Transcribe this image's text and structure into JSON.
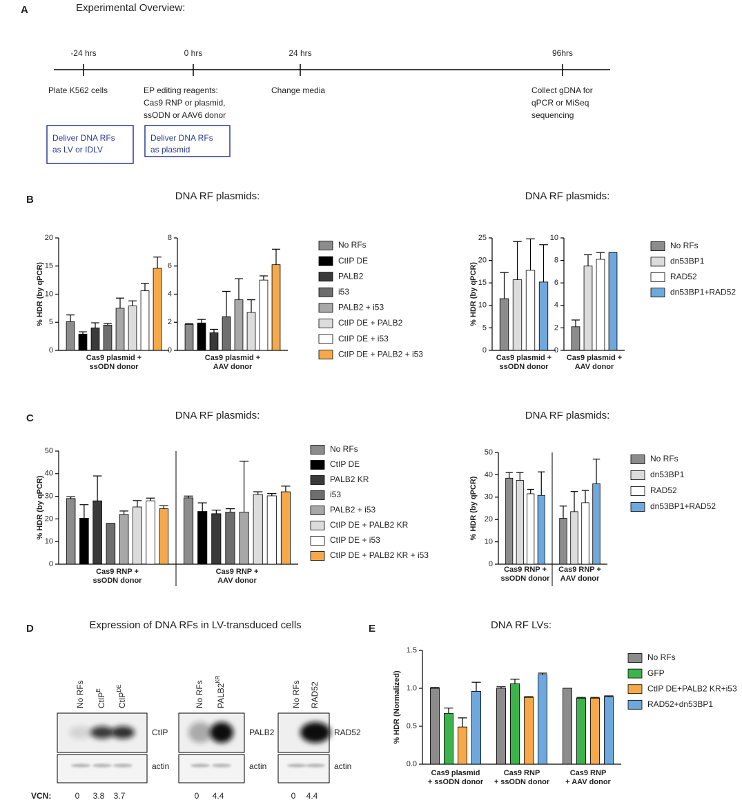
{
  "panel_labels": [
    "A",
    "B",
    "C",
    "D",
    "E"
  ],
  "timeline": {
    "title": "Experimental Overview:",
    "points": [
      {
        "time": "-24 hrs",
        "lines": [
          "Plate K562 cells"
        ]
      },
      {
        "time": "0 hrs",
        "lines": [
          "EP editing reagents:",
          "Cas9 RNP or plasmid,",
          "ssODN or AAV6 donor"
        ]
      },
      {
        "time": "24 hrs",
        "lines": [
          "Change media"
        ]
      },
      {
        "time": "96hrs",
        "lines": [
          "Collect gDNA for",
          "qPCR or MiSeq",
          "sequencing"
        ]
      }
    ],
    "boxes": [
      [
        "Deliver DNA RFs",
        "as LV or IDLV"
      ],
      [
        "Deliver DNA RFs",
        "as plasmid"
      ]
    ]
  },
  "chart_data": [
    {
      "type": "bar",
      "title": "DNA RF plasmids:",
      "ylabel": "% HDR (by qPCR)",
      "categories": [
        [
          "Cas9 plasmid +",
          "ssODN donor"
        ],
        [
          "Cas9 plasmid +",
          "AAV donor"
        ]
      ],
      "axes": [
        {
          "ylim": [
            0,
            20
          ],
          "yticks": [
            0,
            5,
            10,
            15,
            20
          ]
        },
        {
          "ylim": [
            0,
            8
          ],
          "yticks": [
            0,
            2,
            4,
            6,
            8
          ]
        }
      ],
      "series": [
        {
          "name": "No RFs",
          "color": "#8c8c8c",
          "values": [
            5.1,
            1.85
          ],
          "errors": [
            1.2,
            0.05
          ]
        },
        {
          "name": "CtIP DE",
          "color": "#000000",
          "values": [
            2.9,
            1.95
          ],
          "errors": [
            0.4,
            0.25
          ]
        },
        {
          "name": "PALB2",
          "color": "#3a3a3a",
          "values": [
            4.0,
            1.25
          ],
          "errors": [
            0.9,
            0.25
          ]
        },
        {
          "name": "i53",
          "color": "#6e6e6e",
          "values": [
            4.5,
            2.4
          ],
          "errors": [
            0.3,
            1.8
          ]
        },
        {
          "name": "PALB2 + i53",
          "color": "#a8a8a8",
          "values": [
            7.5,
            3.6
          ],
          "errors": [
            1.8,
            1.5
          ]
        },
        {
          "name": "CtIP DE + PALB2",
          "color": "#dcdcdc",
          "values": [
            7.9,
            2.7
          ],
          "errors": [
            0.9,
            0.9
          ]
        },
        {
          "name": "CtIP DE + i53",
          "color": "#ffffff",
          "values": [
            10.6,
            5.0
          ],
          "errors": [
            1.3,
            0.3
          ]
        },
        {
          "name": "CtIP DE + PALB2 + i53",
          "color": "#f5a94a",
          "values": [
            14.6,
            6.1
          ],
          "errors": [
            2.0,
            1.1
          ]
        }
      ]
    },
    {
      "type": "bar",
      "title": "DNA RF plasmids:",
      "ylabel": "% HDR (by qPCR)",
      "categories": [
        [
          "Cas9 plasmid +",
          "ssODN donor"
        ],
        [
          "Cas9 plasmid +",
          "AAV donor"
        ]
      ],
      "axes": [
        {
          "ylim": [
            0,
            25
          ],
          "yticks": [
            0,
            5,
            10,
            15,
            20,
            25
          ]
        },
        {
          "ylim": [
            0,
            10
          ],
          "yticks": [
            0,
            2,
            4,
            6,
            8,
            10
          ]
        }
      ],
      "series": [
        {
          "name": "No RFs",
          "color": "#8c8c8c",
          "values": [
            11.5,
            2.1
          ],
          "errors": [
            5.8,
            0.6
          ]
        },
        {
          "name": "dn53BP1",
          "color": "#dcdcdc",
          "values": [
            15.7,
            7.5
          ],
          "errors": [
            8.5,
            1.0
          ]
        },
        {
          "name": "RAD52",
          "color": "#ffffff",
          "values": [
            17.8,
            8.1
          ],
          "errors": [
            7.0,
            0.6
          ]
        },
        {
          "name": "dn53BP1+RAD52",
          "color": "#6fa8dc",
          "values": [
            15.2,
            8.7
          ],
          "errors": [
            8.3,
            0
          ]
        }
      ]
    },
    {
      "type": "bar",
      "title": "DNA RF plasmids:",
      "ylabel": "% HDR (by qPCR)",
      "categories": [
        [
          "Cas9 RNP +",
          "ssODN donor"
        ],
        [
          "Cas9 RNP +",
          "AAV donor"
        ]
      ],
      "axes": [
        {
          "ylim": [
            0,
            50
          ],
          "yticks": [
            0,
            10,
            20,
            30,
            40,
            50
          ]
        }
      ],
      "series": [
        {
          "name": "No RFs",
          "color": "#8c8c8c",
          "values": [
            29,
            29.3
          ],
          "errors": [
            0.8,
            0.8
          ]
        },
        {
          "name": "CtIP DE",
          "color": "#000000",
          "values": [
            20.3,
            23.3
          ],
          "errors": [
            6,
            3.8
          ]
        },
        {
          "name": "PALB2 KR",
          "color": "#3a3a3a",
          "values": [
            28,
            22.3
          ],
          "errors": [
            11,
            1.6
          ]
        },
        {
          "name": "i53",
          "color": "#6e6e6e",
          "values": [
            18,
            23
          ],
          "errors": [
            0,
            1.5
          ]
        },
        {
          "name": "PALB2 + i53",
          "color": "#a8a8a8",
          "values": [
            22,
            23
          ],
          "errors": [
            1.5,
            22.5
          ]
        },
        {
          "name": "CtIP DE + PALB2 KR",
          "color": "#dcdcdc",
          "values": [
            25.3,
            30.8
          ],
          "errors": [
            2.8,
            1.2
          ]
        },
        {
          "name": "CtIP DE + i53",
          "color": "#ffffff",
          "values": [
            28,
            30.2
          ],
          "errors": [
            1.2,
            1
          ]
        },
        {
          "name": "CtIP DE + PALB2 KR + i53",
          "color": "#f5a94a",
          "values": [
            24.5,
            32
          ],
          "errors": [
            1.3,
            2.5
          ]
        }
      ]
    },
    {
      "type": "bar",
      "title": "DNA RF plasmids:",
      "ylabel": "% HDR (by qPCR)",
      "categories": [
        [
          "Cas9 RNP +",
          "ssODN donor"
        ],
        [
          "Cas9 RNP +",
          "AAV donor"
        ]
      ],
      "axes": [
        {
          "ylim": [
            0,
            50
          ],
          "yticks": [
            0,
            10,
            20,
            30,
            40,
            50
          ]
        }
      ],
      "series": [
        {
          "name": "No RFs",
          "color": "#8c8c8c",
          "values": [
            38.5,
            20.5
          ],
          "errors": [
            2.5,
            5.5
          ]
        },
        {
          "name": "dn53BP1",
          "color": "#dcdcdc",
          "values": [
            37.5,
            23.5
          ],
          "errors": [
            3.5,
            9
          ]
        },
        {
          "name": "RAD52",
          "color": "#ffffff",
          "values": [
            31.5,
            27.5
          ],
          "errors": [
            2,
            5.5
          ]
        },
        {
          "name": "dn53BP1+RAD52",
          "color": "#6fa8dc",
          "values": [
            30.8,
            36
          ],
          "errors": [
            10.5,
            11
          ]
        }
      ]
    },
    {
      "type": "bar",
      "title": "DNA RF LVs:",
      "ylabel": "% HDR (Normalized)",
      "categories": [
        [
          "Cas9 plasmid",
          "+ ssODN donor"
        ],
        [
          "Cas9 RNP",
          "+ ssODN donor"
        ],
        [
          "Cas9 RNP",
          "+ AAV donor"
        ]
      ],
      "axes": [
        {
          "ylim": [
            0,
            1.5
          ],
          "yticks": [
            {
              "value": 0,
              "label": "0.0"
            },
            {
              "value": 0.5,
              "label": "0.5"
            },
            {
              "value": 1,
              "label": "1.0"
            },
            {
              "value": 1.5,
              "label": "1.5"
            }
          ]
        }
      ],
      "series": [
        {
          "name": "No RFs",
          "color": "#8c8c8c",
          "values": [
            1.0,
            1.0,
            1.0
          ],
          "errors": [
            0.01,
            0.02,
            0
          ]
        },
        {
          "name": "GFP",
          "color": "#3cb44b",
          "values": [
            0.67,
            1.06,
            0.87
          ],
          "errors": [
            0.07,
            0.06,
            0.01
          ]
        },
        {
          "name": "CtIP DE+PALB2 KR+i53",
          "color": "#f5a94a",
          "values": [
            0.49,
            0.88,
            0.87
          ],
          "errors": [
            0.12,
            0.01,
            0.01
          ]
        },
        {
          "name": "RAD52+dn53BP1",
          "color": "#6fa8dc",
          "values": [
            0.96,
            1.18,
            0.89
          ],
          "errors": [
            0.12,
            0.02,
            0.01
          ]
        }
      ]
    }
  ],
  "blot": {
    "title": "Expression of DNA RFs in LV-transduced cells",
    "vcn_label": "VCN:",
    "panels": [
      {
        "lanes": [
          {
            "text": "No RFs"
          },
          {
            "text": "CtIP",
            "sup": "E"
          },
          {
            "text": "CtIP",
            "sup": "DE"
          }
        ],
        "bands": [
          "CtIP",
          "actin"
        ],
        "vcn": [
          0,
          3.8,
          3.7
        ]
      },
      {
        "lanes": [
          {
            "text": "No RFs"
          },
          {
            "text": "PALB2",
            "sup": "KR"
          }
        ],
        "bands": [
          "PALB2",
          "actin"
        ],
        "vcn": [
          0,
          4.4
        ]
      },
      {
        "lanes": [
          {
            "text": "No RFs"
          },
          {
            "text": "RAD52"
          }
        ],
        "bands": [
          "RAD52",
          "actin"
        ],
        "vcn": [
          0,
          4.4
        ]
      }
    ]
  }
}
